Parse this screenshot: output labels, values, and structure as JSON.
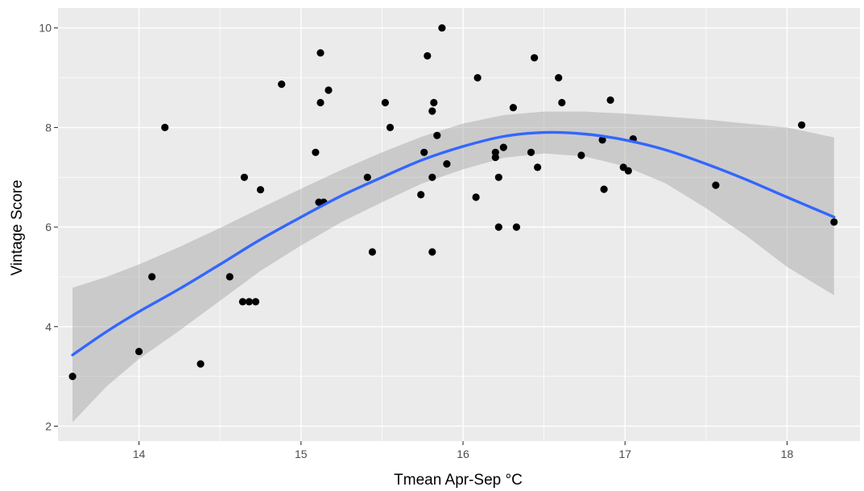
{
  "chart_data": {
    "type": "scatter",
    "xlabel": "Tmean Apr-Sep  °C",
    "ylabel": "Vintage Score",
    "xlim": [
      13.5,
      18.45
    ],
    "ylim": [
      1.7,
      10.4
    ],
    "x_ticks": [
      14,
      15,
      16,
      17,
      18
    ],
    "y_ticks": [
      2,
      4,
      6,
      8,
      10
    ],
    "grid": true,
    "legend": "none",
    "points": [
      {
        "x": 13.59,
        "y": 3.0
      },
      {
        "x": 14.0,
        "y": 3.5
      },
      {
        "x": 14.08,
        "y": 5.0
      },
      {
        "x": 14.16,
        "y": 8.0
      },
      {
        "x": 14.38,
        "y": 3.25
      },
      {
        "x": 14.56,
        "y": 5.0
      },
      {
        "x": 14.64,
        "y": 4.5
      },
      {
        "x": 14.65,
        "y": 7.0
      },
      {
        "x": 14.68,
        "y": 4.5
      },
      {
        "x": 14.72,
        "y": 4.5
      },
      {
        "x": 14.75,
        "y": 6.75
      },
      {
        "x": 14.88,
        "y": 8.87
      },
      {
        "x": 15.09,
        "y": 7.5
      },
      {
        "x": 15.11,
        "y": 6.5
      },
      {
        "x": 15.12,
        "y": 8.5
      },
      {
        "x": 15.12,
        "y": 9.5
      },
      {
        "x": 15.14,
        "y": 6.5
      },
      {
        "x": 15.17,
        "y": 8.75
      },
      {
        "x": 15.41,
        "y": 7.0
      },
      {
        "x": 15.44,
        "y": 5.5
      },
      {
        "x": 15.52,
        "y": 8.5
      },
      {
        "x": 15.55,
        "y": 8.0
      },
      {
        "x": 15.74,
        "y": 6.65
      },
      {
        "x": 15.76,
        "y": 7.5
      },
      {
        "x": 15.78,
        "y": 9.44
      },
      {
        "x": 15.81,
        "y": 5.5
      },
      {
        "x": 15.81,
        "y": 7.0
      },
      {
        "x": 15.81,
        "y": 8.33
      },
      {
        "x": 15.82,
        "y": 8.5
      },
      {
        "x": 15.84,
        "y": 7.84
      },
      {
        "x": 15.87,
        "y": 10.0
      },
      {
        "x": 15.9,
        "y": 7.27
      },
      {
        "x": 16.08,
        "y": 6.6
      },
      {
        "x": 16.09,
        "y": 9.0
      },
      {
        "x": 16.2,
        "y": 7.4
      },
      {
        "x": 16.2,
        "y": 7.5
      },
      {
        "x": 16.22,
        "y": 6.0
      },
      {
        "x": 16.22,
        "y": 7.0
      },
      {
        "x": 16.25,
        "y": 7.6
      },
      {
        "x": 16.31,
        "y": 8.4
      },
      {
        "x": 16.33,
        "y": 6.0
      },
      {
        "x": 16.42,
        "y": 7.5
      },
      {
        "x": 16.44,
        "y": 9.4
      },
      {
        "x": 16.46,
        "y": 7.2
      },
      {
        "x": 16.59,
        "y": 9.0
      },
      {
        "x": 16.61,
        "y": 8.5
      },
      {
        "x": 16.73,
        "y": 7.44
      },
      {
        "x": 16.86,
        "y": 7.75
      },
      {
        "x": 16.87,
        "y": 6.76
      },
      {
        "x": 16.91,
        "y": 8.55
      },
      {
        "x": 16.99,
        "y": 7.2
      },
      {
        "x": 17.02,
        "y": 7.13
      },
      {
        "x": 17.05,
        "y": 7.77
      },
      {
        "x": 17.56,
        "y": 6.84
      },
      {
        "x": 18.09,
        "y": 8.05
      },
      {
        "x": 18.29,
        "y": 6.1
      }
    ],
    "smooth": {
      "x": [
        13.59,
        13.8,
        14.0,
        14.25,
        14.5,
        14.75,
        15.0,
        15.25,
        15.5,
        15.75,
        16.0,
        16.25,
        16.5,
        16.75,
        17.0,
        17.25,
        17.5,
        17.75,
        18.0,
        18.29
      ],
      "y": [
        3.43,
        3.9,
        4.3,
        4.76,
        5.25,
        5.75,
        6.2,
        6.63,
        7.0,
        7.35,
        7.62,
        7.82,
        7.9,
        7.87,
        7.75,
        7.55,
        7.27,
        6.95,
        6.6,
        6.2
      ],
      "upper": [
        4.78,
        5.0,
        5.25,
        5.6,
        5.98,
        6.38,
        6.77,
        7.15,
        7.5,
        7.82,
        8.08,
        8.25,
        8.32,
        8.32,
        8.28,
        8.22,
        8.16,
        8.08,
        8.0,
        7.8
      ],
      "lower": [
        2.08,
        2.8,
        3.35,
        3.92,
        4.52,
        5.12,
        5.63,
        6.1,
        6.5,
        6.88,
        7.16,
        7.39,
        7.48,
        7.42,
        7.22,
        6.88,
        6.38,
        5.82,
        5.2,
        4.63
      ]
    },
    "colors": {
      "panel": "#ebebeb",
      "grid_major": "#ffffff",
      "points": "#000000",
      "line": "#3366ff",
      "ribbon": "#999999",
      "tick_text": "#4d4d4d",
      "tick_mark": "#333333"
    }
  }
}
